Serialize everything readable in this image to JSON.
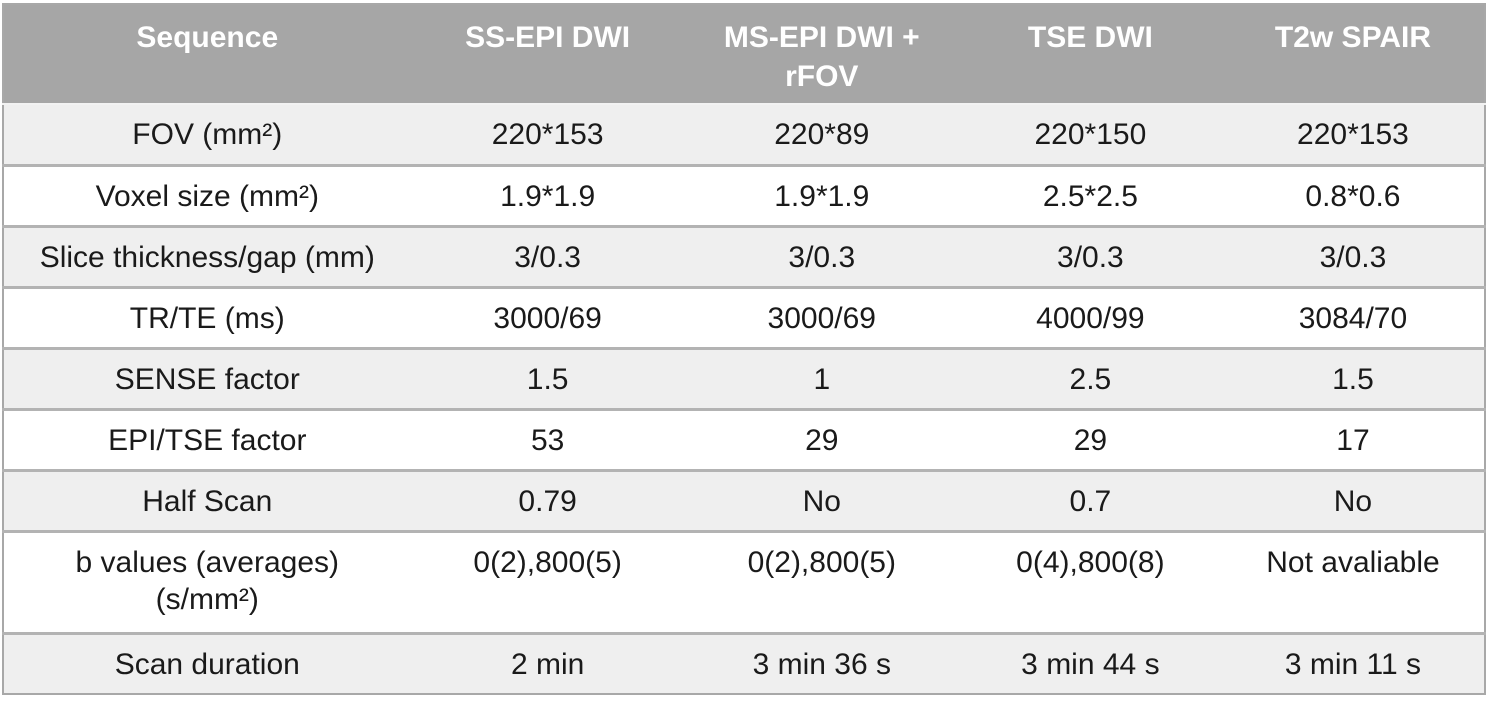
{
  "table": {
    "columns": [
      "Sequence",
      "SS-EPI DWI",
      "MS-EPI DWI +\nrFOV",
      "TSE DWI",
      "T2w SPAIR"
    ],
    "rows": [
      {
        "label": "FOV (mm²)",
        "values": [
          "220*153",
          "220*89",
          "220*150",
          "220*153"
        ]
      },
      {
        "label": "Voxel size (mm²)",
        "values": [
          "1.9*1.9",
          "1.9*1.9",
          "2.5*2.5",
          "0.8*0.6"
        ]
      },
      {
        "label": "Slice thickness/gap (mm)",
        "values": [
          "3/0.3",
          "3/0.3",
          "3/0.3",
          "3/0.3"
        ]
      },
      {
        "label": "TR/TE (ms)",
        "values": [
          "3000/69",
          "3000/69",
          "4000/99",
          "3084/70"
        ]
      },
      {
        "label": "SENSE factor",
        "values": [
          "1.5",
          "1",
          "2.5",
          "1.5"
        ]
      },
      {
        "label": "EPI/TSE factor",
        "values": [
          "53",
          "29",
          "29",
          "17"
        ]
      },
      {
        "label": "Half Scan",
        "values": [
          "0.79",
          "No",
          "0.7",
          "No"
        ]
      },
      {
        "label": "b values (averages)\n(s/mm²)",
        "values": [
          "0(2),800(5)",
          "0(2),800(5)",
          "0(4),800(8)",
          "Not avaliable"
        ]
      },
      {
        "label": "Scan duration",
        "values": [
          "2 min",
          "3 min 36 s",
          "3 min 44 s",
          "3 min 11 s"
        ]
      }
    ]
  },
  "colors": {
    "header_bg": "#a6a6a6",
    "header_text": "#ffffff",
    "row_alt_bg": "#efefef",
    "row_bg": "#ffffff",
    "body_text": "#1a1a1a",
    "row_border": "#b3b3b3",
    "outer_border": "#a8a8a8",
    "header_divider": "#f2f2f2"
  }
}
